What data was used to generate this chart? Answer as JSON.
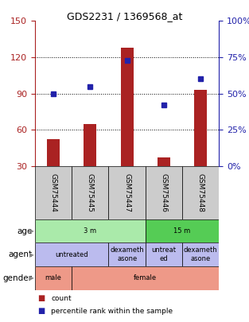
{
  "title": "GDS2231 / 1369568_at",
  "samples": [
    "GSM75444",
    "GSM75445",
    "GSM75447",
    "GSM75446",
    "GSM75448"
  ],
  "bar_values": [
    52,
    65,
    128,
    37,
    93
  ],
  "dot_values": [
    50,
    55,
    73,
    42,
    60
  ],
  "ylim_left": [
    30,
    150
  ],
  "ylim_right": [
    0,
    100
  ],
  "left_ticks": [
    30,
    60,
    90,
    120,
    150
  ],
  "right_ticks": [
    0,
    25,
    50,
    75,
    100
  ],
  "right_tick_labels": [
    "0%",
    "25%",
    "50%",
    "75%",
    "100%"
  ],
  "bar_color": "#aa2222",
  "dot_color": "#2222aa",
  "age_row": {
    "label": "age",
    "groups": [
      {
        "text": "3 m",
        "start": 0,
        "end": 3,
        "color": "#aaeaaa"
      },
      {
        "text": "15 m",
        "start": 3,
        "end": 5,
        "color": "#55cc55"
      }
    ]
  },
  "agent_row": {
    "label": "agent",
    "groups": [
      {
        "text": "untreated",
        "start": 0,
        "end": 2,
        "color": "#bbbbee"
      },
      {
        "text": "dexameth\nasone",
        "start": 2,
        "end": 3,
        "color": "#bbbbee"
      },
      {
        "text": "untreat\ned",
        "start": 3,
        "end": 4,
        "color": "#bbbbee"
      },
      {
        "text": "dexameth\nasone",
        "start": 4,
        "end": 5,
        "color": "#bbbbee"
      }
    ]
  },
  "gender_row": {
    "label": "gender",
    "groups": [
      {
        "text": "male",
        "start": 0,
        "end": 1,
        "color": "#ee9988"
      },
      {
        "text": "female",
        "start": 1,
        "end": 5,
        "color": "#ee9988"
      }
    ]
  },
  "sample_bg_color": "#cccccc"
}
